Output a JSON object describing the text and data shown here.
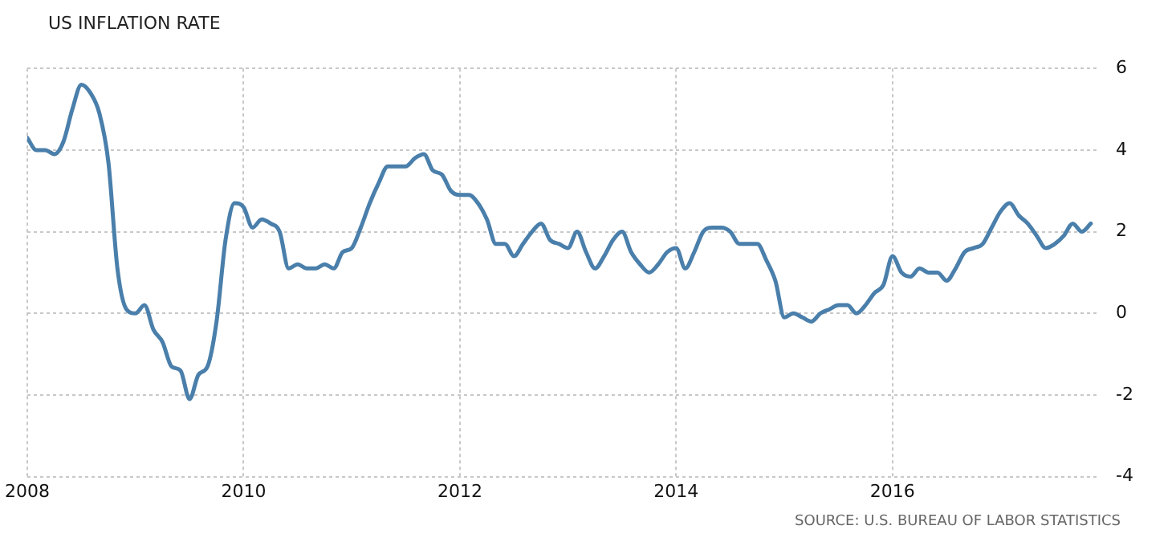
{
  "chart_data": {
    "type": "line",
    "title": "US INFLATION RATE",
    "annotations": [
      "SOURCE: U.S. BUREAU OF LABOR STATISTICS"
    ],
    "x": [
      "2008-01",
      "2008-02",
      "2008-03",
      "2008-04",
      "2008-05",
      "2008-06",
      "2008-07",
      "2008-08",
      "2008-09",
      "2008-10",
      "2008-11",
      "2008-12",
      "2009-01",
      "2009-02",
      "2009-03",
      "2009-04",
      "2009-05",
      "2009-06",
      "2009-07",
      "2009-08",
      "2009-09",
      "2009-10",
      "2009-11",
      "2009-12",
      "2010-01",
      "2010-02",
      "2010-03",
      "2010-04",
      "2010-05",
      "2010-06",
      "2010-07",
      "2010-08",
      "2010-09",
      "2010-10",
      "2010-11",
      "2010-12",
      "2011-01",
      "2011-02",
      "2011-03",
      "2011-04",
      "2011-05",
      "2011-06",
      "2011-07",
      "2011-08",
      "2011-09",
      "2011-10",
      "2011-11",
      "2011-12",
      "2012-01",
      "2012-02",
      "2012-03",
      "2012-04",
      "2012-05",
      "2012-06",
      "2012-07",
      "2012-08",
      "2012-09",
      "2012-10",
      "2012-11",
      "2012-12",
      "2013-01",
      "2013-02",
      "2013-03",
      "2013-04",
      "2013-05",
      "2013-06",
      "2013-07",
      "2013-08",
      "2013-09",
      "2013-10",
      "2013-11",
      "2013-12",
      "2014-01",
      "2014-02",
      "2014-03",
      "2014-04",
      "2014-05",
      "2014-06",
      "2014-07",
      "2014-08",
      "2014-09",
      "2014-10",
      "2014-11",
      "2014-12",
      "2015-01",
      "2015-02",
      "2015-03",
      "2015-04",
      "2015-05",
      "2015-06",
      "2015-07",
      "2015-08",
      "2015-09",
      "2015-10",
      "2015-11",
      "2015-12",
      "2016-01",
      "2016-02",
      "2016-03",
      "2016-04",
      "2016-05",
      "2016-06",
      "2016-07",
      "2016-08",
      "2016-09",
      "2016-10",
      "2016-11",
      "2016-12",
      "2017-01",
      "2017-02",
      "2017-03",
      "2017-04",
      "2017-05",
      "2017-06",
      "2017-07",
      "2017-08",
      "2017-09",
      "2017-10",
      "2017-11"
    ],
    "series": [
      {
        "color": "#4a7fab",
        "values": [
          4.3,
          4.0,
          4.0,
          3.9,
          4.2,
          5.0,
          5.6,
          5.4,
          4.9,
          3.7,
          1.1,
          0.1,
          0.0,
          0.2,
          -0.4,
          -0.7,
          -1.3,
          -1.4,
          -2.1,
          -1.5,
          -1.3,
          -0.2,
          1.8,
          2.7,
          2.6,
          2.1,
          2.3,
          2.2,
          2.0,
          1.1,
          1.2,
          1.1,
          1.1,
          1.2,
          1.1,
          1.5,
          1.6,
          2.1,
          2.7,
          3.2,
          3.6,
          3.6,
          3.6,
          3.8,
          3.9,
          3.5,
          3.4,
          3.0,
          2.9,
          2.9,
          2.7,
          2.3,
          1.7,
          1.7,
          1.4,
          1.7,
          2.0,
          2.2,
          1.8,
          1.7,
          1.6,
          2.0,
          1.5,
          1.1,
          1.4,
          1.8,
          2.0,
          1.5,
          1.2,
          1.0,
          1.2,
          1.5,
          1.6,
          1.1,
          1.5,
          2.0,
          2.1,
          2.1,
          2.0,
          1.7,
          1.7,
          1.7,
          1.3,
          0.8,
          -0.1,
          0.0,
          -0.1,
          -0.2,
          0.0,
          0.1,
          0.2,
          0.2,
          0.0,
          0.2,
          0.5,
          0.7,
          1.4,
          1.0,
          0.9,
          1.1,
          1.0,
          1.0,
          0.8,
          1.1,
          1.5,
          1.6,
          1.7,
          2.1,
          2.5,
          2.7,
          2.4,
          2.2,
          1.9,
          1.6,
          1.7,
          1.9,
          2.2,
          2.0,
          2.2
        ]
      }
    ],
    "xlim": [
      "2008",
      "2017-12"
    ],
    "xticks": [
      {
        "value": "2008",
        "label": "2008"
      },
      {
        "value": "2010",
        "label": "2010"
      },
      {
        "value": "2012",
        "label": "2012"
      },
      {
        "value": "2014",
        "label": "2014"
      },
      {
        "value": "2016",
        "label": "2016"
      }
    ],
    "ylim": [
      -4,
      6
    ],
    "yticks": [
      -4,
      -2,
      0,
      2,
      4,
      6
    ],
    "grid": true,
    "legend": false,
    "marker": "none",
    "line_style": "solid"
  }
}
